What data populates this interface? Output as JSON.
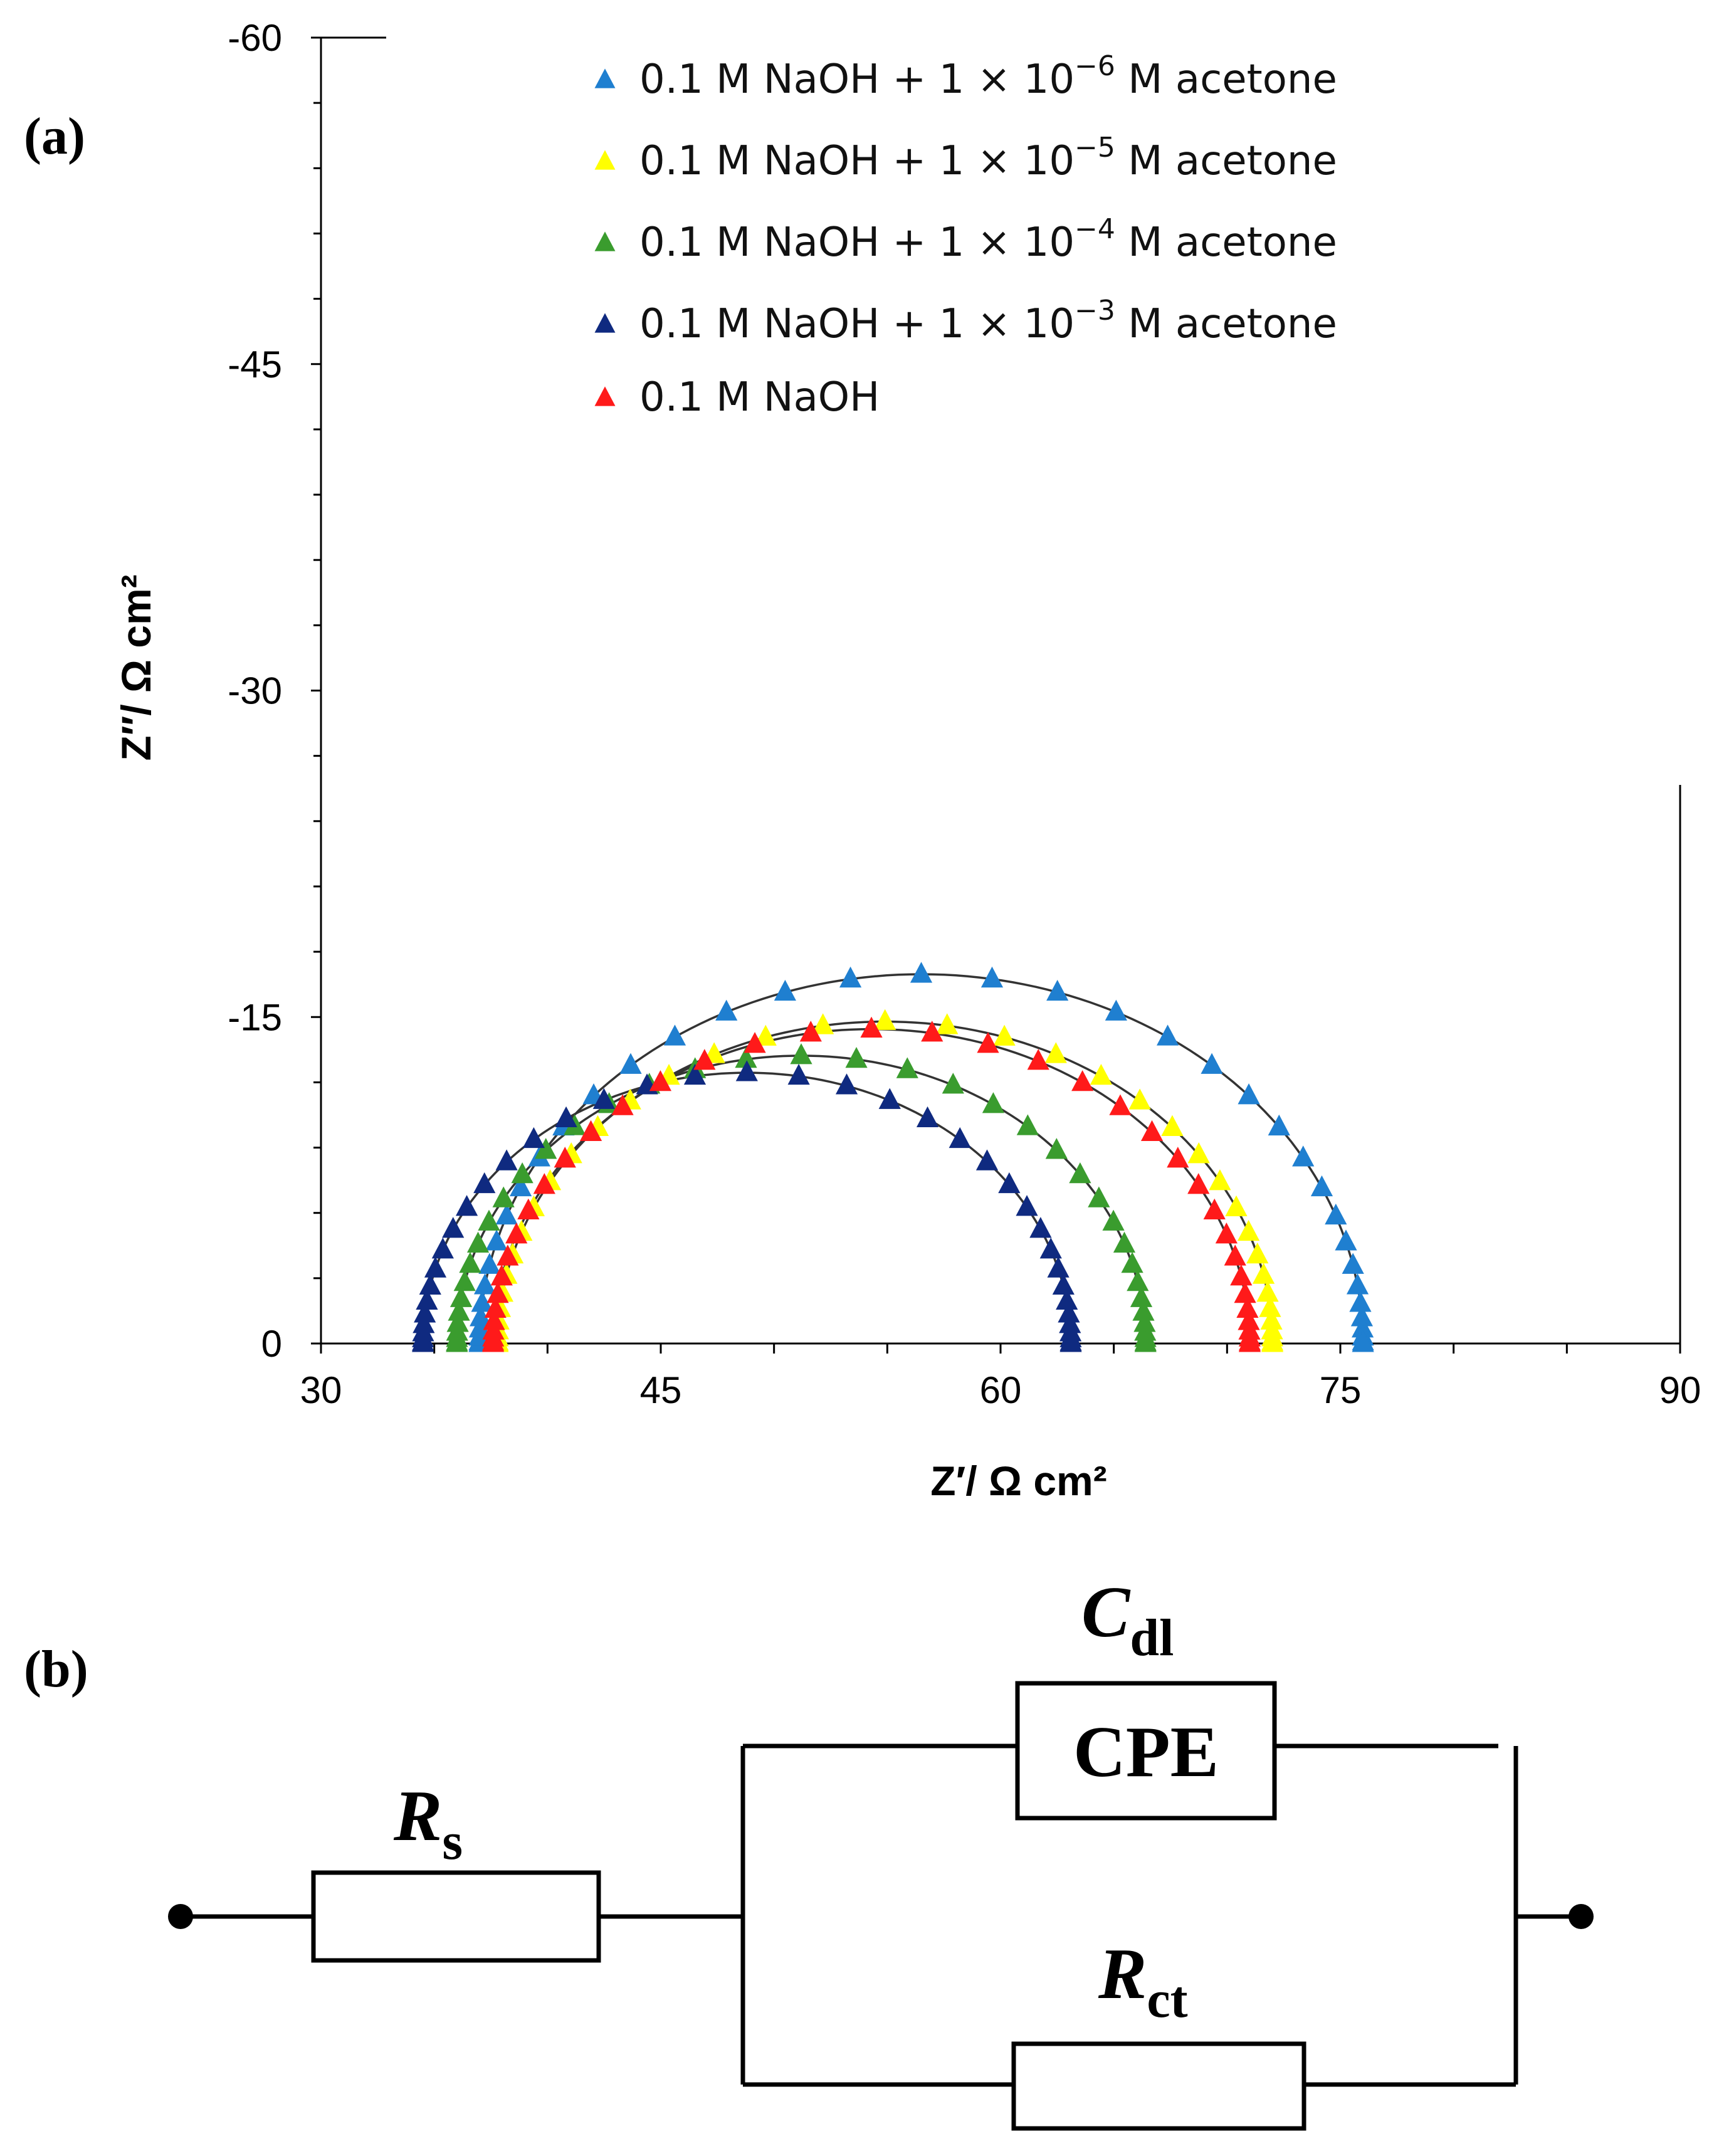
{
  "panel_a_label": "(a)",
  "panel_b_label": "(b)",
  "chart_data": {
    "type": "scatter",
    "title": "",
    "xlabel": "Z′/ Ω cm²",
    "ylabel": "Z″/ Ω cm²",
    "xlim": [
      30,
      90
    ],
    "ylim": [
      0,
      -60
    ],
    "x_ticks": [
      30,
      45,
      60,
      75,
      90
    ],
    "x_tick_labels": [
      "30",
      "45",
      "60",
      "75",
      "90"
    ],
    "y_ticks": [
      0,
      -15,
      -30,
      -45,
      -60
    ],
    "y_tick_labels": [
      "0",
      "-15",
      "-30",
      "-45",
      "-60"
    ],
    "legend_position": "top-right",
    "series": [
      {
        "name": "0.1 M NaOH + 1 × 10⁻⁶ M acetone",
        "label_main": "0.1 M NaOH + 1 × 10",
        "label_exp": "−6",
        "label_tail": " M acetone",
        "color": "#1f7fd0",
        "rs": 37.0,
        "rct": 39.0,
        "depression": 0.87
      },
      {
        "name": "0.1 M NaOH + 1 × 10⁻⁵ M acetone",
        "label_main": "0.1 M NaOH + 1 × 10",
        "label_exp": "−5",
        "label_tail": " M acetone",
        "color": "#ffff00",
        "rs": 37.8,
        "rct": 34.2,
        "depression": 0.865
      },
      {
        "name": "0.1 M NaOH + 1 × 10⁻⁴ M acetone",
        "label_main": "0.1 M NaOH + 1 × 10",
        "label_exp": "−4",
        "label_tail": " M acetone",
        "color": "#3a9c2e",
        "rs": 36.0,
        "rct": 30.4,
        "depression": 0.87
      },
      {
        "name": "0.1 M NaOH + 1 × 10⁻³ M acetone",
        "label_main": "0.1 M NaOH + 1 × 10",
        "label_exp": "−3",
        "label_tail": " M acetone",
        "color": "#0f2a80",
        "rs": 34.5,
        "rct": 28.6,
        "depression": 0.87
      },
      {
        "name": "0.1 M NaOH",
        "label_main": "0.1 M NaOH",
        "label_exp": "",
        "label_tail": "",
        "color": "#ff1a1a",
        "rs": 37.6,
        "rct": 33.4,
        "depression": 0.865
      }
    ]
  },
  "circuit": {
    "rs_label": "R",
    "rs_sub": "s",
    "cdl_label": "C",
    "cdl_sub": "dl",
    "cpe_text": "CPE",
    "rct_label": "R",
    "rct_sub": "ct"
  }
}
